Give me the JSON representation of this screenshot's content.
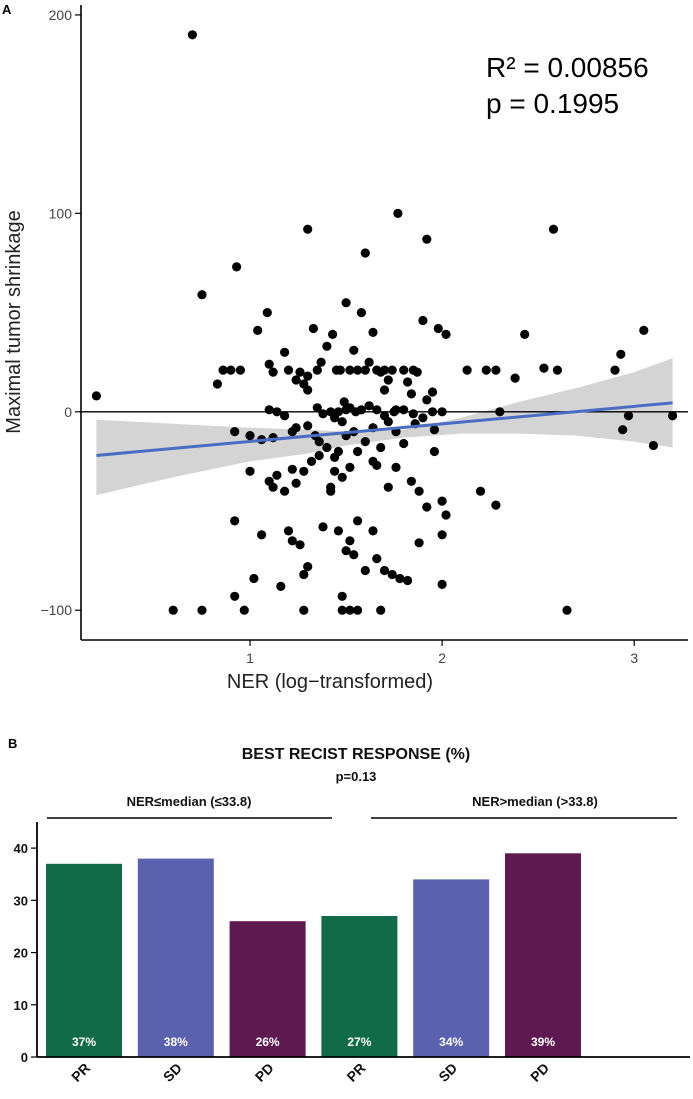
{
  "chart_data": [
    {
      "panel_label": "A",
      "type": "scatter",
      "xlabel": "NER (log−transformed)",
      "ylabel": "Maximal tumor shrinkage",
      "xlim": [
        0.12,
        3.28
      ],
      "ylim": [
        -115,
        205
      ],
      "x_ticks": [
        1,
        2,
        3
      ],
      "x_tick_labels": [
        "1",
        "2",
        "3"
      ],
      "y_ticks": [
        -100,
        0,
        100,
        200
      ],
      "y_tick_labels": [
        "−100",
        "0",
        "100",
        "200"
      ],
      "annotation_r2": "R² = 0.00856",
      "annotation_p": "p = 0.1995",
      "regression": {
        "x_start": 0.2,
        "y_start": -22,
        "x_end": 3.2,
        "y_end": 4.5
      },
      "ci_band": [
        [
          0.2,
          -4,
          -42
        ],
        [
          0.6,
          -6,
          -33
        ],
        [
          1.0,
          -8,
          -25
        ],
        [
          1.3,
          -9,
          -21
        ],
        [
          1.5,
          -10,
          -17
        ],
        [
          1.8,
          -9,
          -13
        ],
        [
          2.1,
          -3,
          -11
        ],
        [
          2.4,
          5,
          -11
        ],
        [
          2.7,
          12,
          -12
        ],
        [
          3.0,
          20,
          -15
        ],
        [
          3.2,
          27,
          -18
        ]
      ],
      "points": [
        [
          0.2,
          8
        ],
        [
          0.7,
          190
        ],
        [
          0.75,
          59
        ],
        [
          0.93,
          73
        ],
        [
          0.83,
          14
        ],
        [
          0.86,
          21
        ],
        [
          0.9,
          21
        ],
        [
          0.95,
          21
        ],
        [
          0.92,
          -10
        ],
        [
          1.0,
          -12
        ],
        [
          1.04,
          41
        ],
        [
          1.09,
          50
        ],
        [
          1.1,
          24
        ],
        [
          1.12,
          20
        ],
        [
          1.1,
          1
        ],
        [
          1.14,
          0
        ],
        [
          1.18,
          30
        ],
        [
          1.2,
          21
        ],
        [
          1.22,
          -29
        ],
        [
          1.24,
          16
        ],
        [
          1.26,
          20
        ],
        [
          1.28,
          14
        ],
        [
          1.3,
          18
        ],
        [
          1.33,
          42
        ],
        [
          1.35,
          21
        ],
        [
          1.37,
          25
        ],
        [
          1.4,
          33
        ],
        [
          1.43,
          39
        ],
        [
          1.45,
          21
        ],
        [
          1.47,
          21
        ],
        [
          1.49,
          5
        ],
        [
          1.5,
          55
        ],
        [
          1.52,
          21
        ],
        [
          1.54,
          31
        ],
        [
          1.56,
          21
        ],
        [
          1.58,
          50
        ],
        [
          1.6,
          21
        ],
        [
          1.62,
          25
        ],
        [
          1.64,
          40
        ],
        [
          1.66,
          21
        ],
        [
          1.68,
          20
        ],
        [
          1.7,
          21
        ],
        [
          1.72,
          16
        ],
        [
          1.74,
          21
        ],
        [
          1.77,
          100
        ],
        [
          1.8,
          21
        ],
        [
          1.82,
          15
        ],
        [
          1.85,
          21
        ],
        [
          1.87,
          20
        ],
        [
          1.9,
          46
        ],
        [
          1.92,
          87
        ],
        [
          1.95,
          10
        ],
        [
          1.98,
          42
        ],
        [
          2.02,
          39
        ],
        [
          2.13,
          21
        ],
        [
          2.23,
          21
        ],
        [
          2.28,
          21
        ],
        [
          2.38,
          17
        ],
        [
          2.43,
          39
        ],
        [
          2.53,
          22
        ],
        [
          2.58,
          92
        ],
        [
          2.6,
          21
        ],
        [
          2.9,
          21
        ],
        [
          2.93,
          29
        ],
        [
          3.05,
          41
        ],
        [
          2.94,
          -9
        ],
        [
          2.97,
          -2
        ],
        [
          3.1,
          -17
        ],
        [
          3.2,
          -2
        ],
        [
          1.3,
          92
        ],
        [
          1.6,
          80
        ],
        [
          1.18,
          -2
        ],
        [
          1.22,
          -10
        ],
        [
          1.3,
          -7
        ],
        [
          1.35,
          2
        ],
        [
          1.38,
          -1
        ],
        [
          1.42,
          0
        ],
        [
          1.44,
          -3
        ],
        [
          1.46,
          0
        ],
        [
          1.48,
          -5
        ],
        [
          1.5,
          1
        ],
        [
          1.52,
          2
        ],
        [
          1.55,
          0
        ],
        [
          1.58,
          1
        ],
        [
          1.62,
          3
        ],
        [
          1.66,
          1
        ],
        [
          1.7,
          -2
        ],
        [
          1.75,
          0
        ],
        [
          1.8,
          1
        ],
        [
          1.85,
          -1
        ],
        [
          1.9,
          -3
        ],
        [
          1.95,
          0
        ],
        [
          2.0,
          0
        ],
        [
          2.3,
          0
        ],
        [
          1.0,
          -30
        ],
        [
          1.1,
          -35
        ],
        [
          1.12,
          -38
        ],
        [
          1.18,
          -40
        ],
        [
          1.24,
          -36
        ],
        [
          1.28,
          -30
        ],
        [
          1.32,
          -25
        ],
        [
          1.36,
          -22
        ],
        [
          1.42,
          -40
        ],
        [
          1.44,
          -30
        ],
        [
          1.46,
          -20
        ],
        [
          1.48,
          -33
        ],
        [
          1.52,
          -28
        ],
        [
          1.56,
          -20
        ],
        [
          1.6,
          -15
        ],
        [
          1.64,
          -25
        ],
        [
          1.68,
          -18
        ],
        [
          1.72,
          -38
        ],
        [
          1.76,
          -28
        ],
        [
          1.8,
          -16
        ],
        [
          1.84,
          -35
        ],
        [
          1.88,
          -40
        ],
        [
          1.92,
          -48
        ],
        [
          1.96,
          -20
        ],
        [
          2.0,
          -45
        ],
        [
          2.02,
          -52
        ],
        [
          2.2,
          -40
        ],
        [
          2.28,
          -47
        ],
        [
          0.92,
          -55
        ],
        [
          1.06,
          -62
        ],
        [
          1.2,
          -60
        ],
        [
          1.22,
          -65
        ],
        [
          1.28,
          -82
        ],
        [
          1.3,
          -78
        ],
        [
          1.26,
          -67
        ],
        [
          1.38,
          -58
        ],
        [
          1.42,
          -38
        ],
        [
          1.46,
          -60
        ],
        [
          1.5,
          -70
        ],
        [
          1.52,
          -65
        ],
        [
          1.54,
          -72
        ],
        [
          1.56,
          -55
        ],
        [
          1.6,
          -80
        ],
        [
          1.64,
          -60
        ],
        [
          1.66,
          -74
        ],
        [
          1.7,
          -80
        ],
        [
          1.74,
          -82
        ],
        [
          1.78,
          -84
        ],
        [
          1.82,
          -85
        ],
        [
          1.88,
          -66
        ],
        [
          2.0,
          -62
        ],
        [
          2.0,
          -87
        ],
        [
          0.6,
          -100
        ],
        [
          0.75,
          -100
        ],
        [
          0.97,
          -100
        ],
        [
          1.28,
          -100
        ],
        [
          1.48,
          -100
        ],
        [
          1.52,
          -100
        ],
        [
          1.56,
          -100
        ],
        [
          1.68,
          -100
        ],
        [
          2.65,
          -100
        ],
        [
          0.92,
          -93
        ],
        [
          1.02,
          -84
        ],
        [
          1.16,
          -88
        ],
        [
          1.48,
          -93
        ],
        [
          1.36,
          -15
        ],
        [
          1.4,
          -18
        ],
        [
          1.5,
          -12
        ],
        [
          1.06,
          -14
        ],
        [
          1.12,
          -13
        ],
        [
          1.14,
          -32
        ],
        [
          1.24,
          -8
        ],
        [
          1.34,
          -12
        ],
        [
          1.44,
          -23
        ],
        [
          1.54,
          -10
        ],
        [
          1.64,
          -8
        ],
        [
          1.72,
          -5
        ],
        [
          1.76,
          -10
        ],
        [
          1.86,
          -6
        ],
        [
          1.96,
          -9
        ],
        [
          1.66,
          -27
        ],
        [
          1.76,
          1
        ],
        [
          1.3,
          11
        ],
        [
          1.7,
          11
        ],
        [
          1.84,
          9
        ],
        [
          1.92,
          6
        ]
      ]
    },
    {
      "panel_label": "B",
      "type": "bar",
      "title": "BEST RECIST RESPONSE (%)",
      "subtitle": "p=0.13",
      "groups": [
        {
          "label": "NER≤median (≤33.8)"
        },
        {
          "label": "NER>median (>33.8)"
        }
      ],
      "categories": [
        "PR",
        "SD",
        "PD",
        "PR",
        "SD",
        "PD"
      ],
      "values": [
        37,
        38,
        26,
        27,
        34,
        39
      ],
      "value_labels": [
        "37%",
        "38%",
        "26%",
        "27%",
        "34%",
        "39%"
      ],
      "colors": [
        "#126b48",
        "#5a62b0",
        "#5e1a50",
        "#126b48",
        "#5a62b0",
        "#5e1a50"
      ],
      "ylim": [
        0,
        45
      ],
      "y_ticks": [
        0,
        10,
        20,
        30,
        40
      ],
      "y_tick_labels": [
        "0",
        "10",
        "20",
        "30",
        "40"
      ]
    }
  ]
}
